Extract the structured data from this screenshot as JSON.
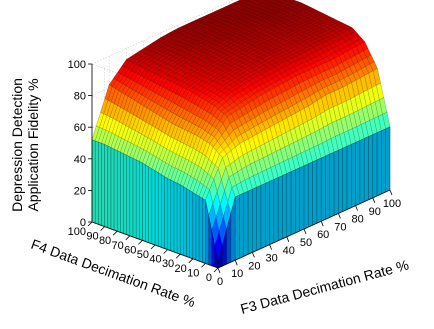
{
  "chart_data": {
    "type": "surface",
    "zlabel_line1": "Depression Detection",
    "zlabel_line2": "Application Fidelity %",
    "xlabel": "F3 Data Decimation Rate %",
    "ylabel": "F4 Data Decimation Rate %",
    "x_ticks": [
      "0",
      "10",
      "20",
      "30",
      "40",
      "50",
      "60",
      "70",
      "80",
      "90",
      "100"
    ],
    "y_ticks": [
      "0",
      "10",
      "20",
      "30",
      "40",
      "50",
      "60",
      "70",
      "80",
      "90",
      "100"
    ],
    "z_ticks": [
      "0",
      "20",
      "40",
      "60",
      "80",
      "100"
    ],
    "xlim": [
      0,
      100
    ],
    "ylim": [
      0,
      100
    ],
    "zlim": [
      0,
      100
    ],
    "grid": true,
    "colormap": "jet",
    "x": [
      0,
      10,
      20,
      30,
      40,
      50,
      60,
      70,
      80,
      90,
      100
    ],
    "y": [
      0,
      10,
      20,
      30,
      40,
      50,
      60,
      70,
      80,
      90,
      100
    ],
    "z": [
      [
        4,
        40,
        40,
        40,
        40,
        40,
        40,
        40,
        40,
        40,
        40
      ],
      [
        40,
        62,
        66,
        67,
        68,
        69,
        70,
        72,
        72,
        73,
        74
      ],
      [
        42,
        68,
        80,
        82,
        84,
        85,
        86,
        86,
        86,
        87,
        88
      ],
      [
        44,
        70,
        84,
        88,
        90,
        91,
        92,
        92,
        93,
        93,
        94
      ],
      [
        45,
        71,
        86,
        90,
        92,
        93,
        94,
        94,
        95,
        95,
        95
      ],
      [
        47,
        72,
        88,
        91,
        93,
        94,
        95,
        95,
        96,
        96,
        96
      ],
      [
        49,
        74,
        89,
        92,
        94,
        95,
        96,
        96,
        97,
        97,
        97
      ],
      [
        50,
        76,
        90,
        93,
        95,
        96,
        97,
        97,
        98,
        98,
        98
      ],
      [
        51,
        78,
        91,
        94,
        96,
        97,
        97,
        98,
        98,
        98,
        98
      ],
      [
        52,
        80,
        92,
        95,
        96,
        97,
        98,
        98,
        98,
        98,
        98
      ],
      [
        52,
        82,
        93,
        95,
        97,
        98,
        98,
        98,
        98,
        98,
        98
      ]
    ]
  }
}
